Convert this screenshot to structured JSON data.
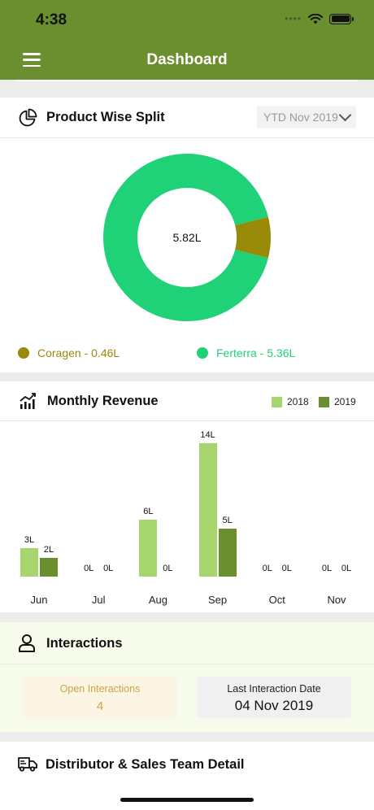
{
  "status_bar": {
    "time": "4:38"
  },
  "nav": {
    "title": "Dashboard"
  },
  "product_split": {
    "title": "Product Wise Split",
    "period_label": "YTD Nov 2019",
    "center_total": "5.82L",
    "legend": [
      {
        "label": "Coragen - 0.46L",
        "color": "#9a8a0a"
      },
      {
        "label": "Ferterra - 5.36L",
        "color": "#1fd177"
      }
    ]
  },
  "monthly_revenue": {
    "title": "Monthly Revenue",
    "legend": [
      {
        "label": "2018",
        "color": "#a6d66d"
      },
      {
        "label": "2019",
        "color": "#6b8e2e"
      }
    ]
  },
  "chart_data": [
    {
      "type": "pie",
      "title": "Product Wise Split",
      "labels": [
        "Coragen",
        "Ferterra"
      ],
      "values": [
        0.46,
        5.36
      ],
      "unit": "L",
      "center_label": "5.82L",
      "colors": [
        "#9a8a0a",
        "#1fd177"
      ]
    },
    {
      "type": "bar",
      "title": "Monthly Revenue",
      "categories": [
        "Jun",
        "Jul",
        "Aug",
        "Sep",
        "Oct",
        "Nov"
      ],
      "series": [
        {
          "name": "2018",
          "values": [
            3,
            0,
            6,
            14,
            0,
            0
          ],
          "labels": [
            "3L",
            "0L",
            "6L",
            "14L",
            "0L",
            "0L"
          ],
          "color": "#a6d66d"
        },
        {
          "name": "2019",
          "values": [
            2,
            0,
            0,
            5,
            0,
            0
          ],
          "labels": [
            "2L",
            "0L",
            "0L",
            "5L",
            "0L",
            "0L"
          ],
          "color": "#6b8e2e"
        }
      ],
      "unit": "L",
      "ylim": [
        0,
        14
      ]
    }
  ],
  "interactions": {
    "title": "Interactions",
    "open_label": "Open Interactions",
    "open_value": "4",
    "last_label": "Last Interaction Date",
    "last_value": "04 Nov 2019"
  },
  "distributor": {
    "title": "Distributor & Sales Team Detail"
  }
}
